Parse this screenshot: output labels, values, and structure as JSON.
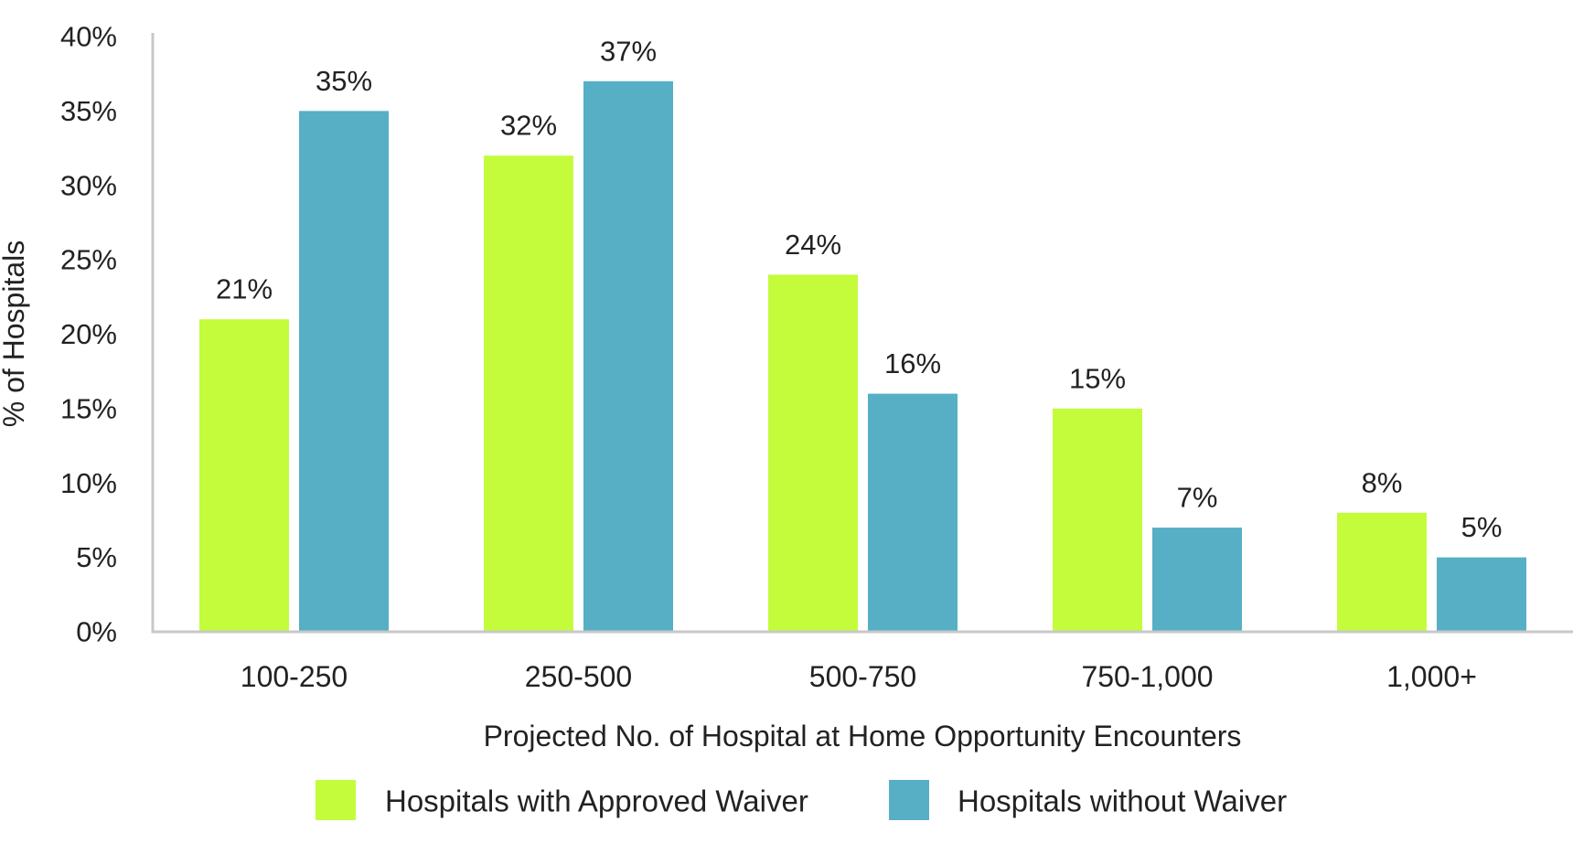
{
  "chart_data": {
    "type": "bar",
    "title": "",
    "xlabel": "Projected No. of Hospital at Home Opportunity Encounters",
    "ylabel": "% of Hospitals",
    "ylim": [
      0,
      40
    ],
    "yticks": [
      0,
      5,
      10,
      15,
      20,
      25,
      30,
      35,
      40
    ],
    "ytick_labels": [
      "0%",
      "5%",
      "10%",
      "15%",
      "20%",
      "25%",
      "30%",
      "35%",
      "40%"
    ],
    "categories": [
      "100-250",
      "250-500",
      "500-750",
      "750-1,000",
      "1,000+"
    ],
    "series": [
      {
        "name": "Hospitals with Approved Waiver",
        "color": "#c4fc3c",
        "values": [
          21,
          32,
          24,
          15,
          8
        ],
        "labels": [
          "21%",
          "32%",
          "24%",
          "15%",
          "8%"
        ]
      },
      {
        "name": "Hospitals without Waiver",
        "color": "#56afc5",
        "values": [
          35,
          37,
          16,
          7,
          5
        ],
        "labels": [
          "35%",
          "37%",
          "16%",
          "7%",
          "5%"
        ]
      }
    ],
    "grid": false,
    "legend": "bottom",
    "axis_color": "#c8c8c8"
  }
}
